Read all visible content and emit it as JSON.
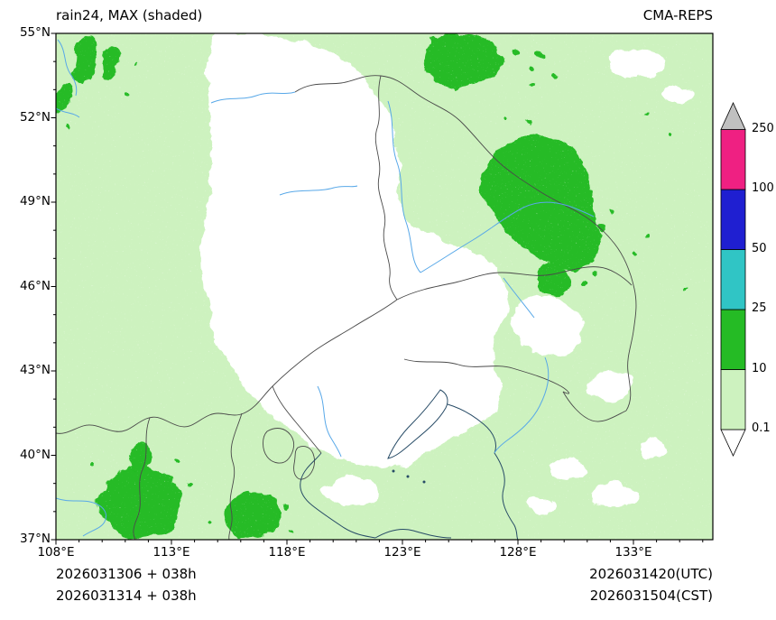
{
  "header": {
    "title": "rain24, MAX (shaded)",
    "model": "CMA-REPS"
  },
  "axes": {
    "x_ticks": [
      {
        "value": 108,
        "label": "108°E"
      },
      {
        "value": 113,
        "label": "113°E"
      },
      {
        "value": 118,
        "label": "118°E"
      },
      {
        "value": 123,
        "label": "123°E"
      },
      {
        "value": 128,
        "label": "128°E"
      },
      {
        "value": 133,
        "label": "133°E"
      }
    ],
    "y_ticks": [
      {
        "value": 55,
        "label": "55°N"
      },
      {
        "value": 52,
        "label": "52°N"
      },
      {
        "value": 49,
        "label": "49°N"
      },
      {
        "value": 46,
        "label": "46°N"
      },
      {
        "value": 43,
        "label": "43°N"
      },
      {
        "value": 40,
        "label": "40°N"
      },
      {
        "value": 37,
        "label": "37°N"
      }
    ]
  },
  "colorbar": {
    "tick_labels": [
      "0.1",
      "10",
      "25",
      "50",
      "100",
      "250"
    ],
    "colors": [
      "#ffffff",
      "#cdf2bf",
      "#25bb25",
      "#30c5c5",
      "#1f1fd1",
      "#ef2082",
      "#c0c0c0"
    ],
    "extend": "both"
  },
  "footer": {
    "left": [
      "2026031306 + 038h",
      "2026031314 + 038h"
    ],
    "right": [
      "2026031420(UTC)",
      "2026031504(CST)"
    ]
  },
  "chart_data": {
    "type": "heatmap",
    "title": "rain24, MAX (shaded)",
    "subtitle": "CMA-REPS",
    "variable": "24-hour accumulated precipitation, ensemble maximum (shaded), mm",
    "x_tick_labels": [
      "108°E",
      "113°E",
      "118°E",
      "123°E",
      "128°E",
      "133°E"
    ],
    "y_tick_labels": [
      "37°N",
      "40°N",
      "43°N",
      "46°N",
      "49°N",
      "52°N",
      "55°N"
    ],
    "x_range": [
      108,
      136.4
    ],
    "y_range": [
      37,
      55
    ],
    "legend_position": "right",
    "grid": false,
    "colorbar": {
      "levels": [
        0.1,
        10,
        25,
        50,
        100,
        250
      ],
      "colors": [
        "#ffffff",
        "#cdf2bf",
        "#25bb25",
        "#30c5c5",
        "#1f1fd1",
        "#ef2082",
        "#c0c0c0"
      ],
      "extend": "both"
    },
    "init_times": [
      "2026031306 + 038h",
      "2026031314 + 038h"
    ],
    "valid_times": [
      "2026031420(UTC)",
      "2026031504(CST)"
    ],
    "shaded_regions": [
      {
        "range_mm": "<0.1",
        "description": "large dry (white) zone over central Northeast China",
        "lon": [
          114,
          124
        ],
        "lat": [
          40,
          53
        ]
      },
      {
        "range_mm": "0.1-10",
        "description": "light rain over most of the rest of the domain",
        "lon": [
          108,
          136.4
        ],
        "lat": [
          37,
          55
        ]
      },
      {
        "range_mm": "10-25",
        "description": "patch over northeast Heilongjiang",
        "lon": [
          126.5,
          131.5
        ],
        "lat": [
          48.5,
          51.8
        ]
      },
      {
        "range_mm": "10-25",
        "description": "patch near the northern border",
        "lon": [
          124.5,
          127.8
        ],
        "lat": [
          53.5,
          55
        ]
      },
      {
        "range_mm": "10-25",
        "description": "patch over southwest Shanxi/Hebei area",
        "lon": [
          110,
          113.5
        ],
        "lat": [
          37,
          39.5
        ]
      },
      {
        "range_mm": "10-25",
        "description": "patch over southern Hebei",
        "lon": [
          115,
          117.5
        ],
        "lat": [
          37,
          38.7
        ]
      },
      {
        "range_mm": "10-25",
        "description": "narrow streaks in the northwest corner",
        "lon": [
          108.3,
          110.8
        ],
        "lat": [
          52.3,
          55
        ]
      }
    ]
  }
}
